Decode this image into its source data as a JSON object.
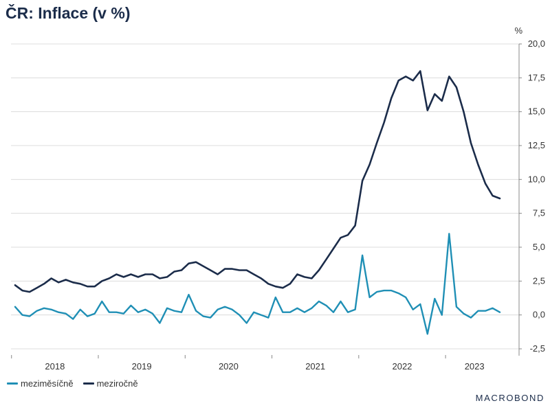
{
  "chart_data": {
    "type": "line",
    "title": "ČR: Inflace (v %)",
    "ylabel": "%",
    "ylim": [
      -2.5,
      20
    ],
    "yticks": [
      "20,0",
      "17,5",
      "15,0",
      "12,5",
      "10,0",
      "7,5",
      "5,0",
      "2,5",
      "0,0",
      "-2,5"
    ],
    "ytick_values": [
      20,
      17.5,
      15,
      12.5,
      10,
      7.5,
      5,
      2.5,
      0,
      -2.5
    ],
    "xticks": [
      "2018",
      "2019",
      "2020",
      "2021",
      "2022",
      "2023"
    ],
    "x_start": "2018-01",
    "x_end": "2023-07",
    "x_unit": "month",
    "grid": true,
    "legend_position": "bottom-left",
    "series": [
      {
        "name": "meziměsíčně",
        "color": "#1f8fb5",
        "values": [
          0.6,
          0.0,
          -0.1,
          0.3,
          0.5,
          0.4,
          0.2,
          0.1,
          -0.3,
          0.4,
          -0.1,
          0.1,
          1.0,
          0.2,
          0.2,
          0.1,
          0.7,
          0.2,
          0.4,
          0.1,
          -0.6,
          0.5,
          0.3,
          0.2,
          1.5,
          0.3,
          -0.1,
          -0.2,
          0.4,
          0.6,
          0.4,
          0.0,
          -0.6,
          0.2,
          0.0,
          -0.2,
          1.3,
          0.2,
          0.2,
          0.5,
          0.2,
          0.5,
          1.0,
          0.7,
          0.2,
          1.0,
          0.2,
          0.4,
          4.4,
          1.3,
          1.7,
          1.8,
          1.8,
          1.6,
          1.3,
          0.4,
          0.8,
          -1.4,
          1.2,
          0.0,
          6.0,
          0.6,
          0.1,
          -0.2,
          0.3,
          0.3,
          0.5,
          0.2
        ]
      },
      {
        "name": "meziročně",
        "color": "#1b2c4a",
        "values": [
          2.2,
          1.8,
          1.7,
          2.0,
          2.3,
          2.7,
          2.4,
          2.6,
          2.4,
          2.3,
          2.1,
          2.1,
          2.5,
          2.7,
          3.0,
          2.8,
          3.0,
          2.8,
          3.0,
          3.0,
          2.7,
          2.8,
          3.2,
          3.3,
          3.8,
          3.9,
          3.6,
          3.3,
          3.0,
          3.4,
          3.4,
          3.3,
          3.3,
          3.0,
          2.7,
          2.3,
          2.1,
          2.0,
          2.3,
          3.0,
          2.8,
          2.7,
          3.3,
          4.1,
          4.9,
          5.7,
          5.9,
          6.6,
          9.9,
          11.1,
          12.7,
          14.2,
          16.0,
          17.3,
          17.6,
          17.3,
          18.0,
          15.1,
          16.3,
          15.8,
          17.6,
          16.8,
          15.0,
          12.7,
          11.1,
          9.7,
          8.8,
          8.6
        ]
      }
    ]
  },
  "legend": {
    "items": [
      {
        "label": "meziměsíčně",
        "color": "#1f8fb5"
      },
      {
        "label": "meziročně",
        "color": "#1b2c4a"
      }
    ]
  },
  "logo_text": "MACROBOND"
}
